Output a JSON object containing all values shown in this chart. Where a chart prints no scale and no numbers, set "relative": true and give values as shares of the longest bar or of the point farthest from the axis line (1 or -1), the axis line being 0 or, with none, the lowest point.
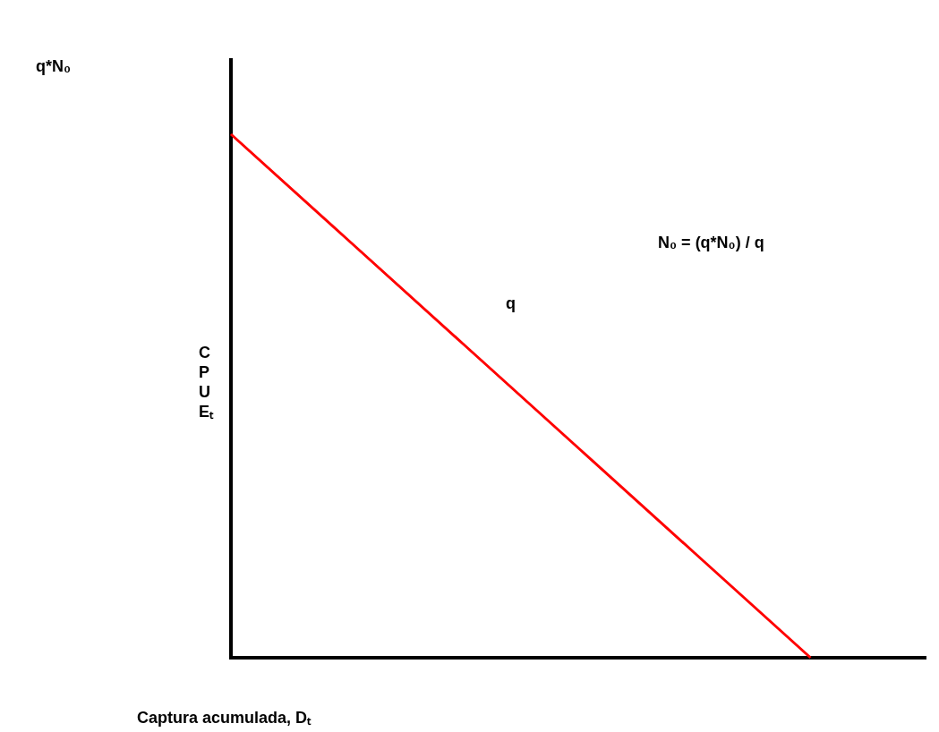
{
  "chart_data": {
    "type": "line",
    "relative": true,
    "xlabel": "Captura acumulada, Dₜ",
    "ylabel": "CPUEₜ",
    "categories": [
      null,
      null,
      null,
      null,
      null,
      null,
      null
    ],
    "series": [
      {
        "color": "#ff0000",
        "values": [
          1,
          0.8,
          0.6,
          0.4,
          0.2,
          0,
          null
        ]
      }
    ],
    "annotations": [
      "q*N₀",
      "N₀ = (q*N₀) / q",
      "q"
    ]
  }
}
